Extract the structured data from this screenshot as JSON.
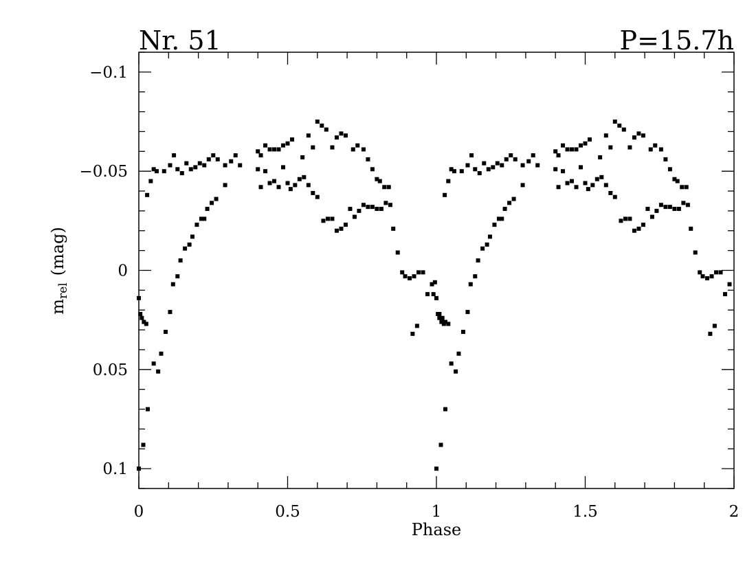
{
  "chart_data": {
    "type": "scatter",
    "title_left": "Nr. 51",
    "title_right": "P=15.7h",
    "xlabel": "Phase",
    "ylabel_main": "m",
    "ylabel_sub": "rel",
    "ylabel_unit": "(mag)",
    "xlim": [
      0,
      2
    ],
    "ylim": [
      0.11,
      -0.11
    ],
    "y_inverted": true,
    "x_ticks": [
      {
        "v": 0,
        "label": "0"
      },
      {
        "v": 0.5,
        "label": "0.5"
      },
      {
        "v": 1,
        "label": "1"
      },
      {
        "v": 1.5,
        "label": "1.5"
      },
      {
        "v": 2,
        "label": "2"
      }
    ],
    "y_ticks": [
      {
        "v": -0.1,
        "label": "−0.1"
      },
      {
        "v": -0.05,
        "label": "−0.05"
      },
      {
        "v": 0,
        "label": "0"
      },
      {
        "v": 0.05,
        "label": "0.05"
      },
      {
        "v": 0.1,
        "label": "0.1"
      }
    ],
    "marker_color": "#000000",
    "points": [
      [
        0.0,
        0.014
      ],
      [
        0.005,
        0.022
      ],
      [
        0.01,
        0.024
      ],
      [
        0.017,
        0.026
      ],
      [
        0.025,
        0.027
      ],
      [
        0.028,
        -0.038
      ],
      [
        0.04,
        -0.045
      ],
      [
        0.05,
        -0.051
      ],
      [
        0.06,
        -0.05
      ],
      [
        0.085,
        -0.05
      ],
      [
        0.105,
        -0.053
      ],
      [
        0.118,
        -0.058
      ],
      [
        0.13,
        -0.051
      ],
      [
        0.145,
        -0.049
      ],
      [
        0.16,
        -0.054
      ],
      [
        0.175,
        -0.051
      ],
      [
        0.19,
        -0.052
      ],
      [
        0.205,
        -0.054
      ],
      [
        0.22,
        -0.053
      ],
      [
        0.235,
        -0.056
      ],
      [
        0.25,
        -0.058
      ],
      [
        0.265,
        -0.056
      ],
      [
        0.29,
        -0.053
      ],
      [
        0.31,
        -0.055
      ],
      [
        0.325,
        -0.058
      ],
      [
        0.34,
        -0.053
      ],
      [
        0.0,
        0.1
      ],
      [
        0.015,
        0.088
      ],
      [
        0.03,
        0.07
      ],
      [
        0.05,
        0.047
      ],
      [
        0.065,
        0.051
      ],
      [
        0.075,
        0.042
      ],
      [
        0.09,
        0.031
      ],
      [
        0.105,
        0.021
      ],
      [
        0.115,
        0.007
      ],
      [
        0.13,
        0.003
      ],
      [
        0.14,
        -0.005
      ],
      [
        0.155,
        -0.011
      ],
      [
        0.17,
        -0.013
      ],
      [
        0.18,
        -0.017
      ],
      [
        0.195,
        -0.023
      ],
      [
        0.21,
        -0.026
      ],
      [
        0.22,
        -0.026
      ],
      [
        0.23,
        -0.031
      ],
      [
        0.245,
        -0.034
      ],
      [
        0.26,
        -0.036
      ],
      [
        0.29,
        -0.043
      ],
      [
        0.4,
        -0.06
      ],
      [
        0.41,
        -0.058
      ],
      [
        0.425,
        -0.063
      ],
      [
        0.44,
        -0.061
      ],
      [
        0.455,
        -0.061
      ],
      [
        0.47,
        -0.061
      ],
      [
        0.485,
        -0.063
      ],
      [
        0.5,
        -0.064
      ],
      [
        0.515,
        -0.066
      ],
      [
        0.55,
        -0.057
      ],
      [
        0.57,
        -0.068
      ],
      [
        0.585,
        -0.062
      ],
      [
        0.6,
        -0.075
      ],
      [
        0.615,
        -0.073
      ],
      [
        0.63,
        -0.071
      ],
      [
        0.65,
        -0.062
      ],
      [
        0.665,
        -0.067
      ],
      [
        0.68,
        -0.069
      ],
      [
        0.695,
        -0.068
      ],
      [
        0.72,
        -0.061
      ],
      [
        0.735,
        -0.063
      ],
      [
        0.755,
        -0.061
      ],
      [
        0.77,
        -0.056
      ],
      [
        0.785,
        -0.051
      ],
      [
        0.8,
        -0.046
      ],
      [
        0.81,
        -0.045
      ],
      [
        0.825,
        -0.042
      ],
      [
        0.84,
        -0.042
      ],
      [
        0.4,
        -0.051
      ],
      [
        0.41,
        -0.042
      ],
      [
        0.425,
        -0.05
      ],
      [
        0.44,
        -0.044
      ],
      [
        0.455,
        -0.045
      ],
      [
        0.47,
        -0.042
      ],
      [
        0.485,
        -0.052
      ],
      [
        0.5,
        -0.044
      ],
      [
        0.51,
        -0.041
      ],
      [
        0.525,
        -0.043
      ],
      [
        0.54,
        -0.046
      ],
      [
        0.555,
        -0.047
      ],
      [
        0.57,
        -0.043
      ],
      [
        0.585,
        -0.039
      ],
      [
        0.6,
        -0.037
      ],
      [
        0.62,
        -0.025
      ],
      [
        0.635,
        -0.026
      ],
      [
        0.65,
        -0.026
      ],
      [
        0.665,
        -0.02
      ],
      [
        0.68,
        -0.021
      ],
      [
        0.695,
        -0.023
      ],
      [
        0.71,
        -0.031
      ],
      [
        0.725,
        -0.027
      ],
      [
        0.74,
        -0.03
      ],
      [
        0.755,
        -0.033
      ],
      [
        0.77,
        -0.032
      ],
      [
        0.785,
        -0.032
      ],
      [
        0.8,
        -0.031
      ],
      [
        0.815,
        -0.031
      ],
      [
        0.83,
        -0.034
      ],
      [
        0.845,
        -0.033
      ],
      [
        0.855,
        -0.021
      ],
      [
        0.87,
        -0.009
      ],
      [
        0.885,
        0.001
      ],
      [
        0.895,
        0.003
      ],
      [
        0.91,
        0.004
      ],
      [
        0.925,
        0.003
      ],
      [
        0.94,
        0.001
      ],
      [
        0.955,
        0.001
      ],
      [
        0.97,
        0.012
      ],
      [
        0.985,
        0.007
      ],
      [
        0.995,
        0.006
      ],
      [
        1.0,
        0.014
      ],
      [
        1.01,
        0.022
      ],
      [
        1.02,
        0.024
      ],
      [
        1.03,
        0.026
      ],
      [
        1.04,
        0.027
      ],
      [
        0.92,
        0.032
      ],
      [
        0.935,
        0.028
      ],
      [
        0.99,
        0.012
      ]
    ],
    "repeat_shift": 1,
    "repeat_max_x": 1.985
  }
}
